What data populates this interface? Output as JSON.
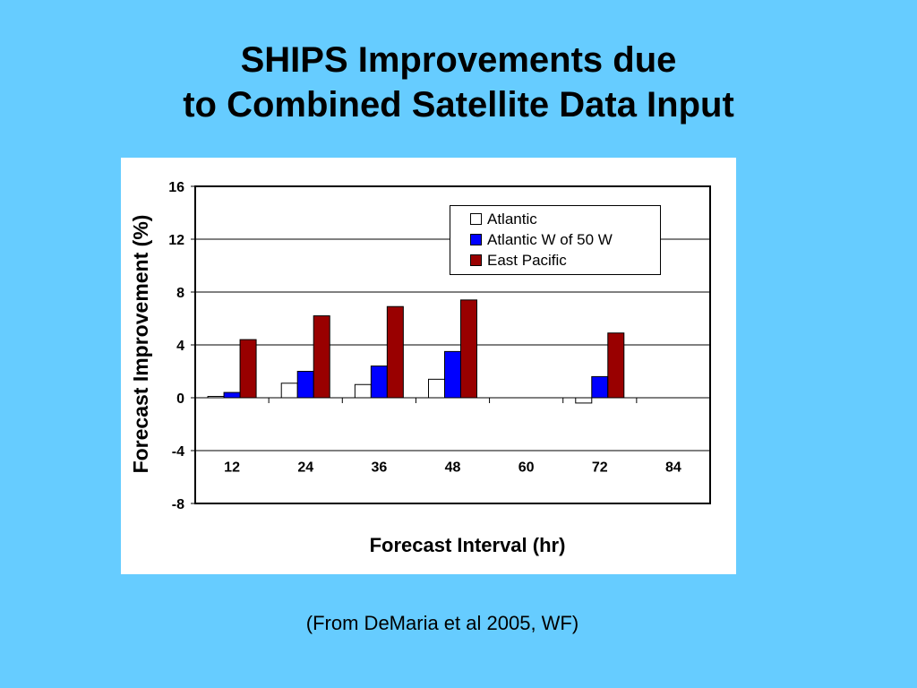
{
  "slide": {
    "title_line1": "SHIPS Improvements due",
    "title_line2": "to Combined Satellite Data Input",
    "source": "(From DeMaria et al 2005, WF)"
  },
  "colors": {
    "background": "#66ccff",
    "atlantic": "#ffffff",
    "atlantic_w50": "#0000ff",
    "east_pacific": "#990000"
  },
  "chart_data": {
    "type": "bar",
    "title": "",
    "xlabel": "Forecast Interval (hr)",
    "ylabel": "Forecast Improvement (%)",
    "ylim": [
      -8,
      16
    ],
    "yticks": [
      "16",
      "12",
      "8",
      "4",
      "0",
      "-4",
      "-8"
    ],
    "categories": [
      "12",
      "24",
      "36",
      "48",
      "60",
      "72",
      "84"
    ],
    "grid": true,
    "legend_position": "top-right",
    "series": [
      {
        "name": "Atlantic",
        "color": "#ffffff",
        "values": [
          0.1,
          1.1,
          1.0,
          1.4,
          null,
          -0.4,
          null
        ]
      },
      {
        "name": "Atlantic W of 50 W",
        "color": "#0000ff",
        "values": [
          0.4,
          2.0,
          2.4,
          3.5,
          null,
          1.6,
          null
        ]
      },
      {
        "name": "East Pacific",
        "color": "#990000",
        "values": [
          4.4,
          6.2,
          6.9,
          7.4,
          null,
          4.9,
          null
        ]
      }
    ]
  }
}
